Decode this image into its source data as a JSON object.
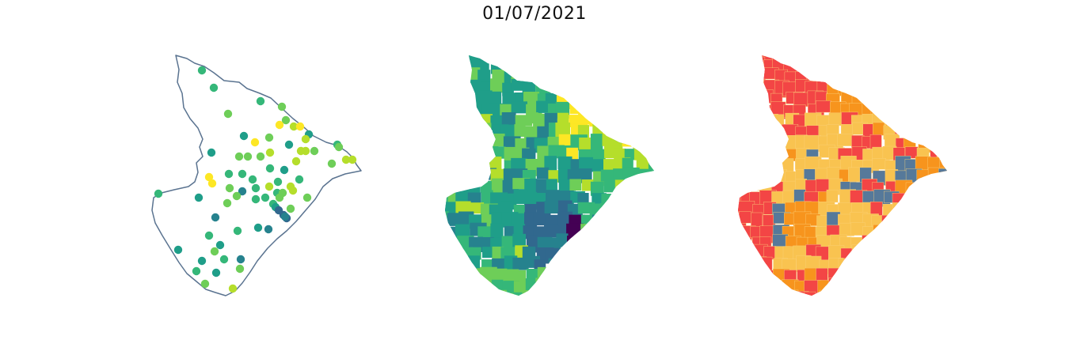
{
  "title": "01/07/2021",
  "panels": [
    {
      "name": "points-map"
    },
    {
      "name": "viridis-choropleth-map"
    },
    {
      "name": "category-choropleth-map"
    }
  ],
  "colors": {
    "outline": "#5a7390",
    "viridis": [
      "#440154",
      "#31688e",
      "#26828e",
      "#1f9e89",
      "#35b779",
      "#6ece58",
      "#b5de2b",
      "#fde725"
    ],
    "categories": [
      "#f9c350",
      "#f34545",
      "#f7941d",
      "#56799a"
    ]
  }
}
